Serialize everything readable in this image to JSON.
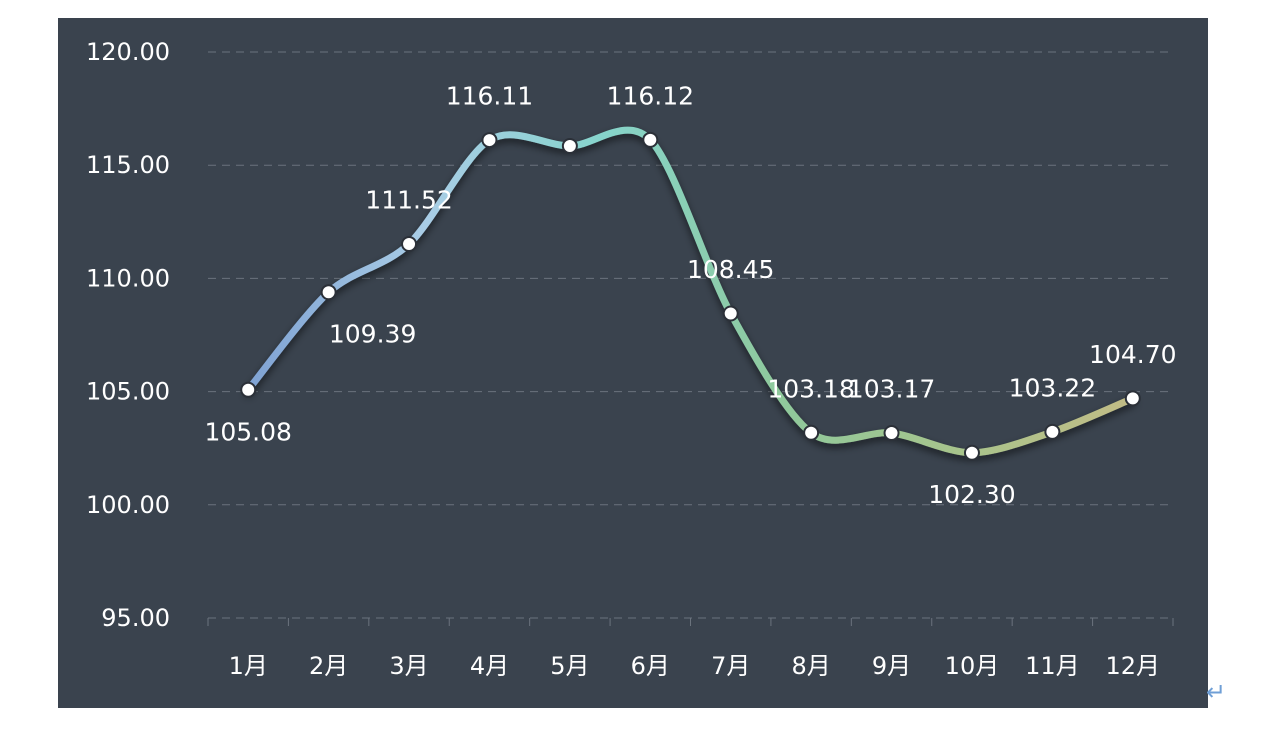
{
  "chart_data": {
    "type": "line",
    "title": "",
    "xlabel": "",
    "ylabel": "",
    "categories": [
      "1月",
      "2月",
      "3月",
      "4月",
      "5月",
      "6月",
      "7月",
      "8月",
      "9月",
      "10月",
      "11月",
      "12月"
    ],
    "series": [
      {
        "values": [
          105.08,
          109.39,
          111.52,
          116.11,
          115.85,
          116.12,
          108.45,
          103.18,
          103.17,
          102.3,
          103.22,
          104.7
        ],
        "data_labels": [
          "105.08",
          "109.39",
          "111.52",
          "116.11",
          "",
          "116.12",
          "108.45",
          "103.18",
          "103.17",
          "102.30",
          "103.22",
          "104.70"
        ]
      }
    ],
    "ylim": [
      95,
      120
    ],
    "yticks": [
      95,
      100,
      105,
      110,
      115,
      120
    ],
    "ytick_labels": [
      "95.00",
      "100.00",
      "105.00",
      "110.00",
      "115.00",
      "120.00"
    ],
    "grid": true,
    "smooth": true,
    "legend": "none",
    "colors": {
      "background": "#3a434e",
      "grid": "#6b737d",
      "gradient": [
        "#7fa2d3",
        "#a9cde6",
        "#86d4cc",
        "#8fc99c",
        "#a7c48c",
        "#c2bc86"
      ],
      "marker_fill": "#ffffff",
      "text": "#ffffff"
    }
  },
  "decoration": {
    "return_mark": "↵"
  }
}
